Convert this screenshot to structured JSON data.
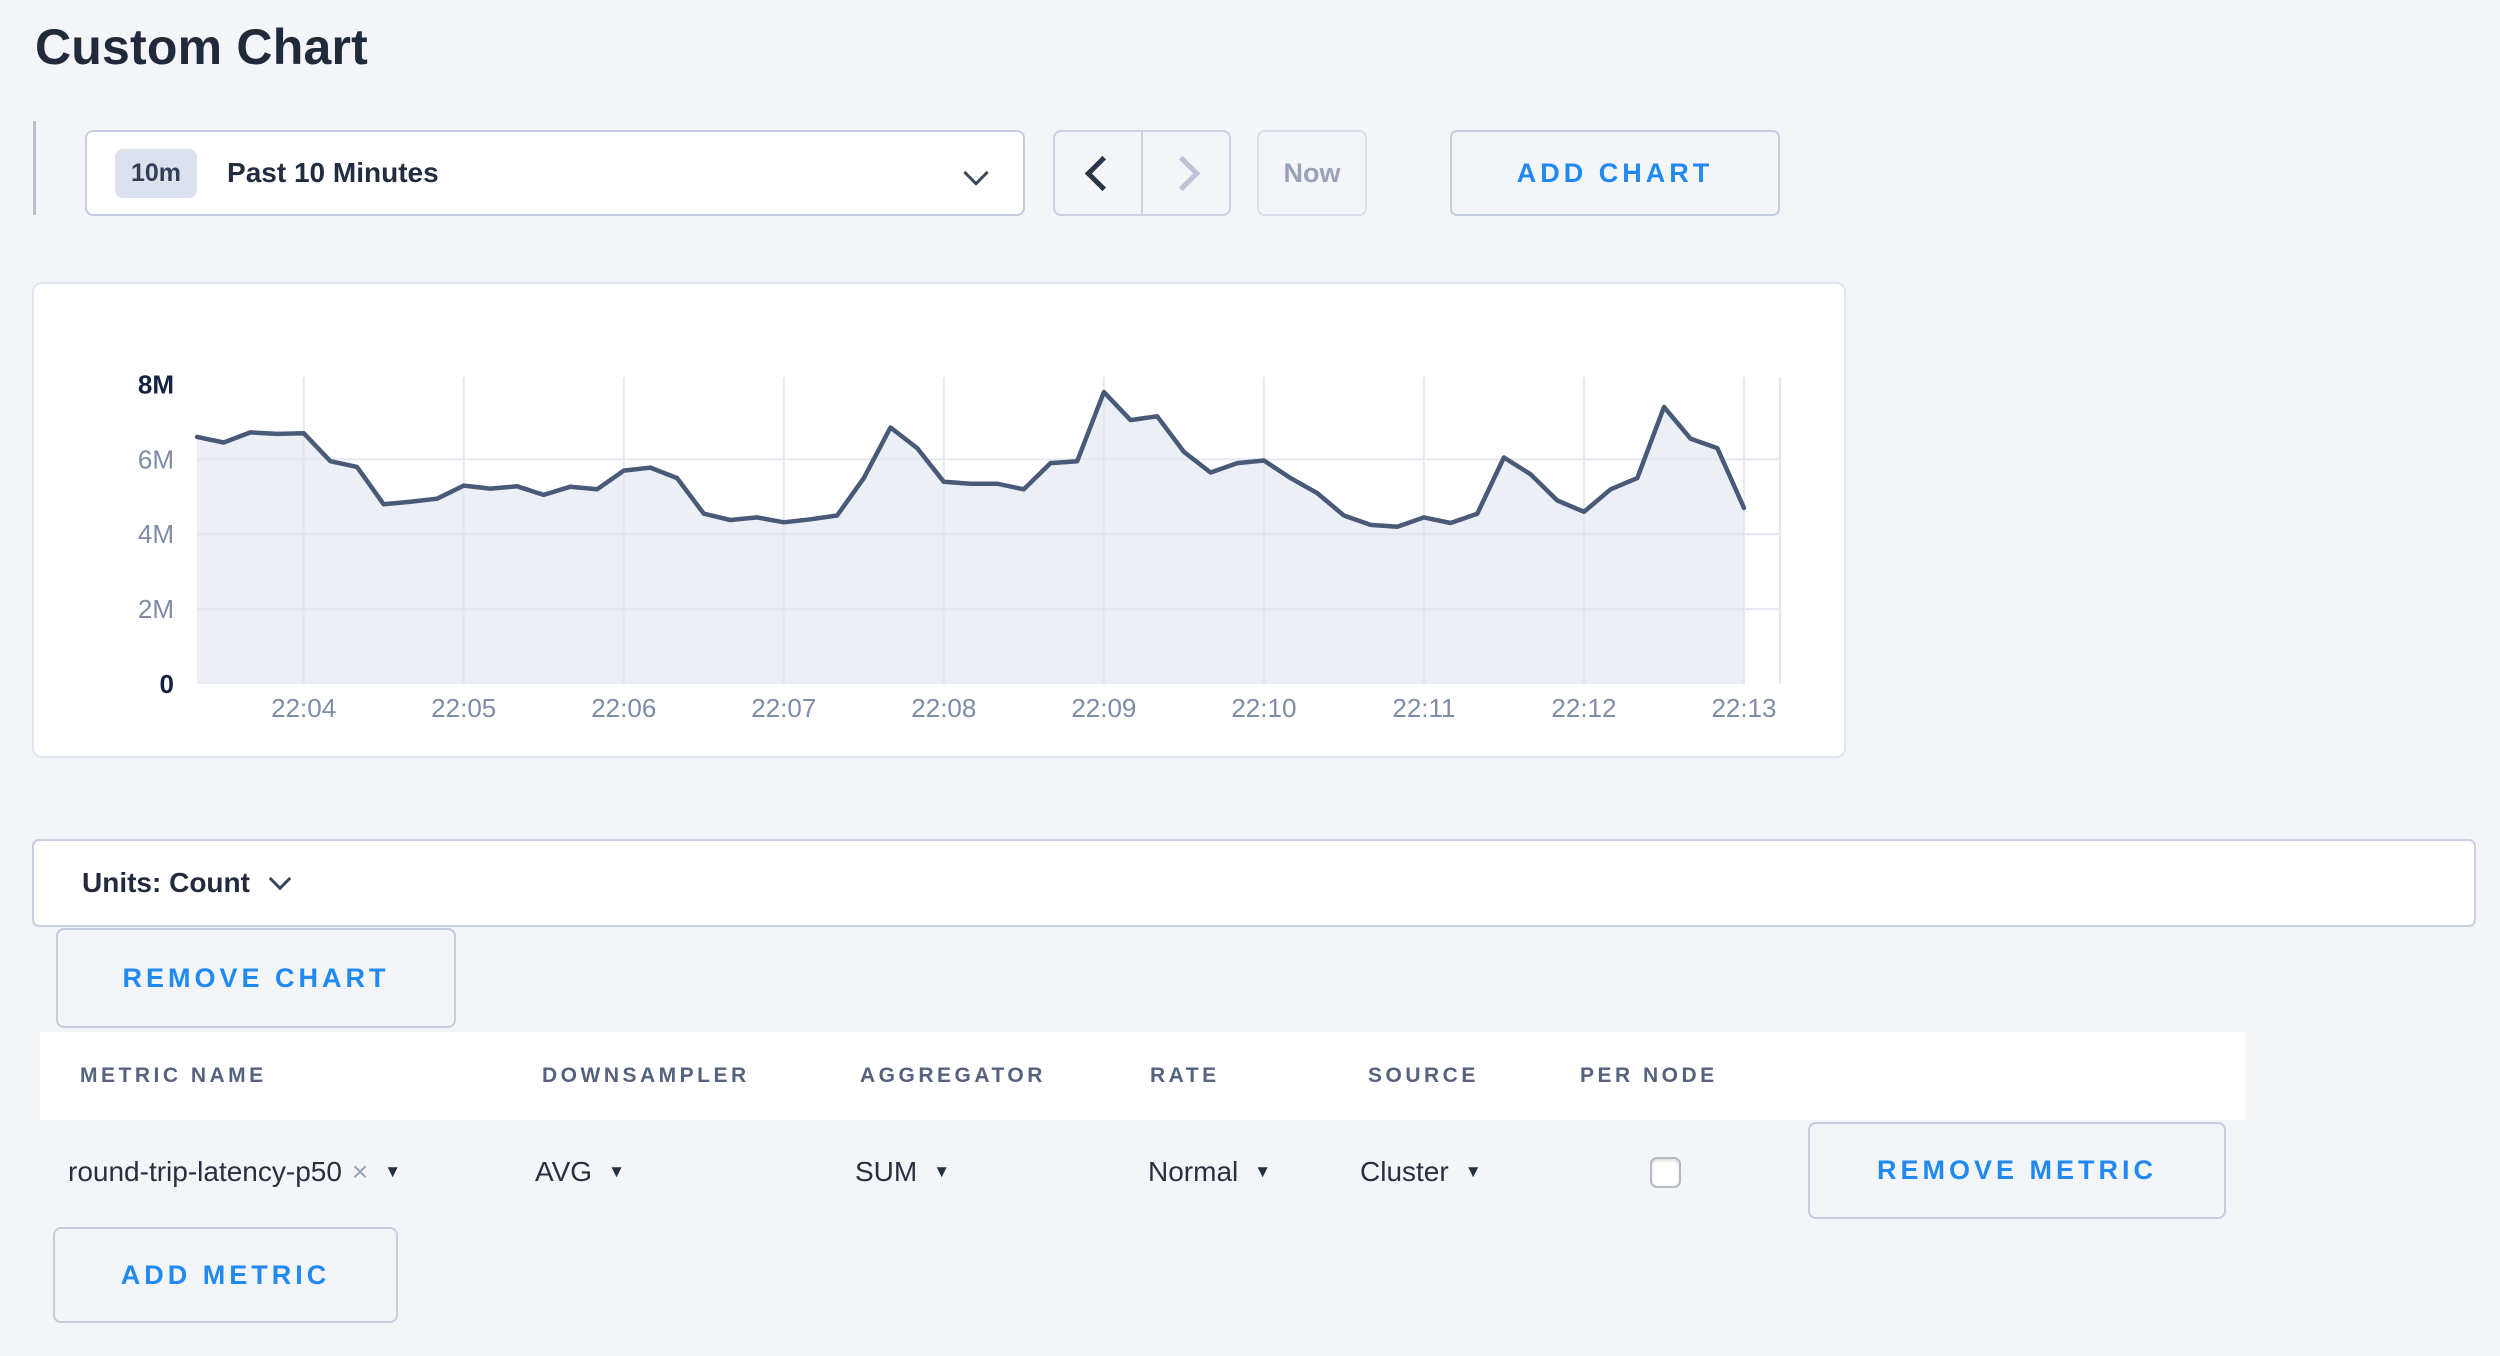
{
  "page": {
    "title": "Custom Chart",
    "background": "#f3f5f9",
    "accent_blue": "#2089f2"
  },
  "toolbar": {
    "time_badge": "10m",
    "time_label": "Past 10 Minutes",
    "now_label": "Now",
    "add_chart_label": "ADD CHART"
  },
  "chart_data": {
    "type": "area",
    "title": "",
    "series": [
      {
        "name": "round-trip-latency-p50",
        "values_millions": [
          6.6,
          6.45,
          6.72,
          6.68,
          6.7,
          5.95,
          5.8,
          4.8,
          4.87,
          4.95,
          5.3,
          5.22,
          5.28,
          5.05,
          5.27,
          5.2,
          5.7,
          5.78,
          5.5,
          4.55,
          4.38,
          4.45,
          4.32,
          4.4,
          4.5,
          5.5,
          6.85,
          6.3,
          5.4,
          5.35,
          5.35,
          5.2,
          5.9,
          5.95,
          7.8,
          7.05,
          7.15,
          6.2,
          5.65,
          5.9,
          5.97,
          5.5,
          5.1,
          4.5,
          4.25,
          4.2,
          4.45,
          4.3,
          4.55,
          6.05,
          5.6,
          4.9,
          4.6,
          5.2,
          5.5,
          7.4,
          6.55,
          6.3,
          4.7
        ]
      }
    ],
    "x_tick_labels": [
      "22:04",
      "22:05",
      "22:06",
      "22:07",
      "22:08",
      "22:09",
      "22:10",
      "22:11",
      "22:12",
      "22:13"
    ],
    "first_tick_index": 4,
    "tick_every": 6,
    "y_tick_labels": [
      "0",
      "2M",
      "4M",
      "6M",
      "8M"
    ],
    "y_ticks_millions": [
      0,
      2,
      4,
      6,
      8
    ],
    "y_ticks_emphasized": [
      "0",
      "8M"
    ],
    "ylim_millions": [
      0,
      8.2
    ],
    "grid": true,
    "legend": "none",
    "unit": "Count",
    "line_color": "#485a77",
    "fill_color": "rgba(223,228,238,0.6)",
    "grid_color": "#e3e8f1",
    "tick_color": "#7e8ca8",
    "tick_emphasis_color": "#13233f"
  },
  "units_bar": {
    "label": "Units: Count"
  },
  "actions": {
    "remove_chart_label": "REMOVE CHART"
  },
  "metrics_table": {
    "columns": [
      "METRIC NAME",
      "DOWNSAMPLER",
      "AGGREGATOR",
      "RATE",
      "SOURCE",
      "PER NODE"
    ],
    "rows": [
      {
        "metric_name": "round-trip-latency-p50",
        "remove_tag_symbol": "×",
        "downsampler": "AVG",
        "aggregator": "SUM",
        "rate": "Normal",
        "source": "Cluster",
        "per_node_checked": false,
        "remove_label": "REMOVE METRIC"
      }
    ],
    "add_metric_label": "ADD METRIC"
  }
}
